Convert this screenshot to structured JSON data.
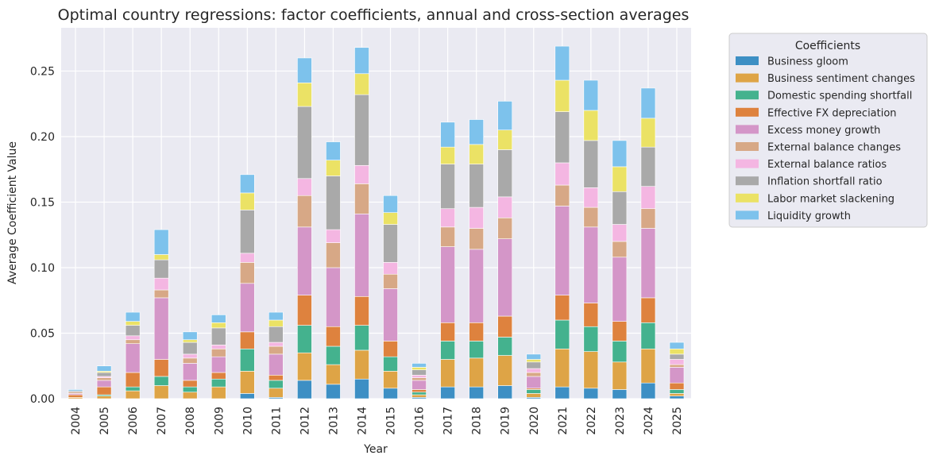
{
  "chart_data": {
    "type": "bar",
    "stacked": true,
    "title": "Optimal country regressions: factor coefficients, annual and cross-section averages",
    "xlabel": "Year",
    "ylabel": "Average Coefficient Value",
    "ylim": [
      0,
      0.283
    ],
    "yticks": [
      "0.00",
      "0.05",
      "0.10",
      "0.15",
      "0.20",
      "0.25"
    ],
    "grid": true,
    "legend_title": "Coefficients",
    "legend_position": "outside-right",
    "categories": [
      "2004",
      "2005",
      "2006",
      "2007",
      "2008",
      "2009",
      "2010",
      "2011",
      "2012",
      "2013",
      "2014",
      "2015",
      "2016",
      "2017",
      "2018",
      "2019",
      "2020",
      "2021",
      "2022",
      "2023",
      "2024",
      "2025"
    ],
    "series": [
      {
        "name": "Business gloom",
        "color": "#3d8fc4",
        "values": [
          0,
          0,
          0,
          0,
          0,
          0,
          0.004,
          0.001,
          0.014,
          0.011,
          0.015,
          0.008,
          0.001,
          0.009,
          0.009,
          0.01,
          0.001,
          0.009,
          0.008,
          0.007,
          0.012,
          0.002
        ]
      },
      {
        "name": "Business sentiment changes",
        "color": "#dea446",
        "values": [
          0.001,
          0.002,
          0.006,
          0.01,
          0.005,
          0.009,
          0.017,
          0.007,
          0.021,
          0.015,
          0.022,
          0.013,
          0.002,
          0.021,
          0.022,
          0.023,
          0.003,
          0.029,
          0.028,
          0.021,
          0.026,
          0.002
        ]
      },
      {
        "name": "Domestic spending shortfall",
        "color": "#44b28e",
        "values": [
          0,
          0.001,
          0.003,
          0.007,
          0.004,
          0.006,
          0.017,
          0.006,
          0.021,
          0.014,
          0.019,
          0.011,
          0.002,
          0.014,
          0.013,
          0.014,
          0.003,
          0.022,
          0.019,
          0.016,
          0.02,
          0.003
        ]
      },
      {
        "name": "Effective FX depreciation",
        "color": "#de823e",
        "values": [
          0.002,
          0.006,
          0.011,
          0.013,
          0.005,
          0.005,
          0.013,
          0.004,
          0.023,
          0.015,
          0.022,
          0.012,
          0.002,
          0.014,
          0.014,
          0.016,
          0.001,
          0.019,
          0.018,
          0.015,
          0.019,
          0.005
        ]
      },
      {
        "name": "Excess money growth",
        "color": "#d496c8",
        "values": [
          0.001,
          0.005,
          0.022,
          0.047,
          0.013,
          0.012,
          0.037,
          0.016,
          0.052,
          0.045,
          0.063,
          0.04,
          0.007,
          0.058,
          0.056,
          0.059,
          0.009,
          0.068,
          0.058,
          0.049,
          0.053,
          0.012
        ]
      },
      {
        "name": "External balance changes",
        "color": "#d7a886",
        "values": [
          0.001,
          0.002,
          0.003,
          0.006,
          0.004,
          0.006,
          0.016,
          0.006,
          0.024,
          0.019,
          0.023,
          0.011,
          0.002,
          0.015,
          0.016,
          0.016,
          0.003,
          0.016,
          0.015,
          0.012,
          0.015,
          0.002
        ]
      },
      {
        "name": "External balance ratios",
        "color": "#f4b6e2",
        "values": [
          0,
          0.001,
          0.003,
          0.009,
          0.003,
          0.003,
          0.007,
          0.003,
          0.013,
          0.01,
          0.014,
          0.009,
          0.002,
          0.014,
          0.016,
          0.016,
          0.003,
          0.017,
          0.015,
          0.013,
          0.017,
          0.004
        ]
      },
      {
        "name": "Inflation shortfall ratio",
        "color": "#a9a9a9",
        "values": [
          0.001,
          0.003,
          0.008,
          0.014,
          0.009,
          0.013,
          0.033,
          0.012,
          0.055,
          0.041,
          0.054,
          0.029,
          0.004,
          0.034,
          0.033,
          0.036,
          0.005,
          0.039,
          0.036,
          0.025,
          0.03,
          0.004
        ]
      },
      {
        "name": "Labor market slackening",
        "color": "#ebe265",
        "values": [
          0,
          0.001,
          0.003,
          0.004,
          0.002,
          0.004,
          0.013,
          0.005,
          0.018,
          0.012,
          0.016,
          0.009,
          0.002,
          0.013,
          0.015,
          0.015,
          0.002,
          0.024,
          0.023,
          0.019,
          0.022,
          0.004
        ]
      },
      {
        "name": "Liquidity growth",
        "color": "#7dc2ec",
        "values": [
          0.001,
          0.004,
          0.007,
          0.019,
          0.006,
          0.006,
          0.014,
          0.006,
          0.019,
          0.014,
          0.02,
          0.013,
          0.003,
          0.019,
          0.019,
          0.022,
          0.004,
          0.026,
          0.023,
          0.02,
          0.023,
          0.005
        ]
      }
    ]
  }
}
